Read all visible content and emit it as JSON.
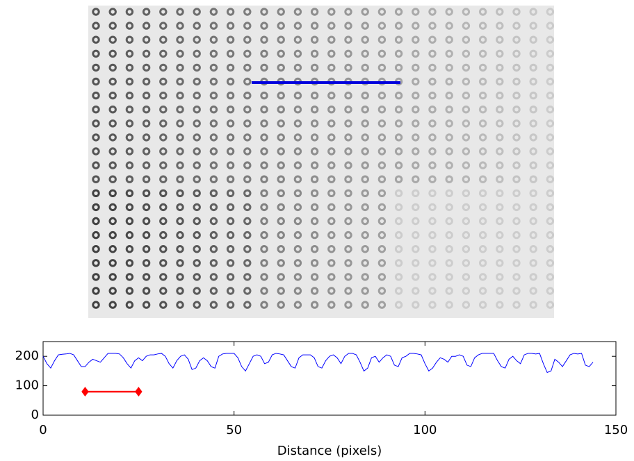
{
  "chart_data": {
    "type": "line",
    "xlabel": "Distance (pixels)",
    "xlim": [
      0,
      150
    ],
    "xticks": [
      0,
      50,
      100,
      150
    ],
    "ylim": [
      0,
      250
    ],
    "yticks": [
      0,
      100,
      200
    ],
    "grid": false,
    "series": [
      {
        "color": "#0000ff",
        "marker": "none",
        "x": [
          0,
          1,
          2,
          3,
          4,
          5,
          6,
          7,
          8,
          9,
          10,
          11,
          12,
          13,
          14,
          15,
          16,
          17,
          18,
          19,
          20,
          21,
          22,
          23,
          24,
          25,
          26,
          27,
          28,
          29,
          30,
          31,
          32,
          33,
          34,
          35,
          36,
          37,
          38,
          39,
          40,
          41,
          42,
          43,
          44,
          45,
          46,
          47,
          48,
          49,
          50,
          51,
          52,
          53,
          54,
          55,
          56,
          57,
          58,
          59,
          60,
          61,
          62,
          63,
          64,
          65,
          66,
          67,
          68,
          69,
          70,
          71,
          72,
          73,
          74,
          75,
          76,
          77,
          78,
          79,
          80,
          81,
          82,
          83,
          84,
          85,
          86,
          87,
          88,
          89,
          90,
          91,
          92,
          93,
          94,
          95,
          96,
          97,
          98,
          99,
          100,
          101,
          102,
          103,
          104,
          105,
          106,
          107,
          108,
          109,
          110,
          111,
          112,
          113,
          114,
          115,
          116,
          117,
          118,
          119,
          120,
          121,
          122,
          123,
          124,
          125,
          126,
          127,
          128,
          129,
          130,
          131,
          132,
          133,
          134,
          135,
          136,
          137,
          138,
          139,
          140,
          141,
          142,
          143,
          144
        ],
        "values": [
          200,
          175,
          160,
          185,
          205,
          207,
          208,
          210,
          205,
          185,
          165,
          165,
          180,
          190,
          185,
          180,
          195,
          210,
          210,
          210,
          208,
          195,
          175,
          160,
          185,
          195,
          185,
          200,
          205,
          205,
          208,
          210,
          200,
          175,
          160,
          185,
          200,
          205,
          190,
          155,
          160,
          185,
          195,
          185,
          165,
          160,
          200,
          208,
          210,
          210,
          210,
          195,
          165,
          150,
          175,
          200,
          205,
          200,
          175,
          180,
          205,
          210,
          208,
          205,
          185,
          165,
          160,
          195,
          205,
          205,
          205,
          195,
          165,
          160,
          185,
          200,
          205,
          195,
          175,
          200,
          210,
          210,
          205,
          180,
          150,
          160,
          195,
          200,
          180,
          195,
          205,
          200,
          170,
          165,
          195,
          200,
          210,
          210,
          208,
          205,
          175,
          150,
          160,
          180,
          195,
          190,
          180,
          200,
          200,
          205,
          200,
          170,
          165,
          195,
          205,
          210,
          210,
          210,
          210,
          185,
          165,
          160,
          190,
          200,
          185,
          175,
          205,
          210,
          210,
          208,
          210,
          175,
          145,
          150,
          190,
          180,
          165,
          185,
          205,
          210,
          208,
          210,
          170,
          165,
          180
        ]
      },
      {
        "color": "#ff0000",
        "marker": "diamond",
        "x": [
          11,
          25
        ],
        "values": [
          80,
          80
        ]
      }
    ]
  }
}
